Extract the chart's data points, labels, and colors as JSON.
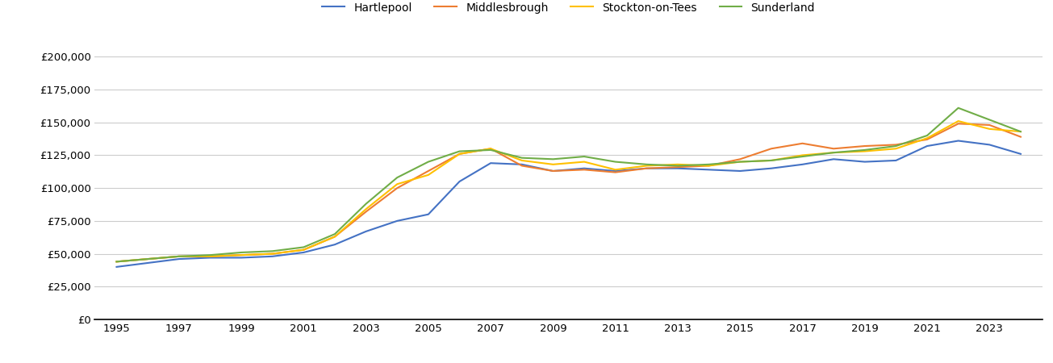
{
  "title": "",
  "series": {
    "Hartlepool": {
      "color": "#4472c4",
      "data": {
        "1995": 40000,
        "1996": 43000,
        "1997": 46000,
        "1998": 47000,
        "1999": 47000,
        "2000": 48000,
        "2001": 51000,
        "2002": 57000,
        "2003": 67000,
        "2004": 75000,
        "2005": 80000,
        "2006": 105000,
        "2007": 119000,
        "2008": 118000,
        "2009": 113000,
        "2010": 115000,
        "2011": 113000,
        "2012": 115000,
        "2013": 115000,
        "2014": 114000,
        "2015": 113000,
        "2016": 115000,
        "2017": 118000,
        "2018": 122000,
        "2019": 120000,
        "2020": 121000,
        "2021": 132000,
        "2022": 136000,
        "2023": 133000,
        "2024": 126000
      }
    },
    "Middlesbrough": {
      "color": "#ed7d31",
      "data": {
        "1995": 44000,
        "1996": 46000,
        "1997": 48000,
        "1998": 48000,
        "1999": 49000,
        "2000": 50000,
        "2001": 53000,
        "2002": 63000,
        "2003": 82000,
        "2004": 100000,
        "2005": 113000,
        "2006": 126000,
        "2007": 130000,
        "2008": 117000,
        "2009": 113000,
        "2010": 114000,
        "2011": 112000,
        "2012": 115000,
        "2013": 116000,
        "2014": 117000,
        "2015": 122000,
        "2016": 130000,
        "2017": 134000,
        "2018": 130000,
        "2019": 132000,
        "2020": 133000,
        "2021": 137000,
        "2022": 149000,
        "2023": 148000,
        "2024": 139000
      }
    },
    "Stockton-on-Tees": {
      "color": "#ffc000",
      "data": {
        "1995": 44000,
        "1996": 46000,
        "1997": 48000,
        "1998": 48000,
        "1999": 49000,
        "2000": 50000,
        "2001": 53000,
        "2002": 63000,
        "2003": 84000,
        "2004": 103000,
        "2005": 110000,
        "2006": 126000,
        "2007": 130000,
        "2008": 121000,
        "2009": 118000,
        "2010": 120000,
        "2011": 114000,
        "2012": 117000,
        "2013": 118000,
        "2014": 117000,
        "2015": 120000,
        "2016": 121000,
        "2017": 125000,
        "2018": 127000,
        "2019": 128000,
        "2020": 130000,
        "2021": 138000,
        "2022": 151000,
        "2023": 145000,
        "2024": 143000
      }
    },
    "Sunderland": {
      "color": "#70ad47",
      "data": {
        "1995": 44000,
        "1996": 46000,
        "1997": 48000,
        "1998": 49000,
        "1999": 51000,
        "2000": 52000,
        "2001": 55000,
        "2002": 65000,
        "2003": 88000,
        "2004": 108000,
        "2005": 120000,
        "2006": 128000,
        "2007": 129000,
        "2008": 123000,
        "2009": 122000,
        "2010": 124000,
        "2011": 120000,
        "2012": 118000,
        "2013": 117000,
        "2014": 118000,
        "2015": 120000,
        "2016": 121000,
        "2017": 124000,
        "2018": 127000,
        "2019": 129000,
        "2020": 132000,
        "2021": 140000,
        "2022": 161000,
        "2023": 152000,
        "2024": 143000
      }
    }
  },
  "ylim": [
    0,
    210000
  ],
  "yticks": [
    0,
    25000,
    50000,
    75000,
    100000,
    125000,
    150000,
    175000,
    200000
  ],
  "xtick_years": [
    1995,
    1997,
    1999,
    2001,
    2003,
    2005,
    2007,
    2009,
    2011,
    2013,
    2015,
    2017,
    2019,
    2021,
    2023
  ],
  "background_color": "#ffffff",
  "grid_color": "#cccccc",
  "legend_order": [
    "Hartlepool",
    "Middlesbrough",
    "Stockton-on-Tees",
    "Sunderland"
  ],
  "xlim_left": 1994.3,
  "xlim_right": 2024.7
}
